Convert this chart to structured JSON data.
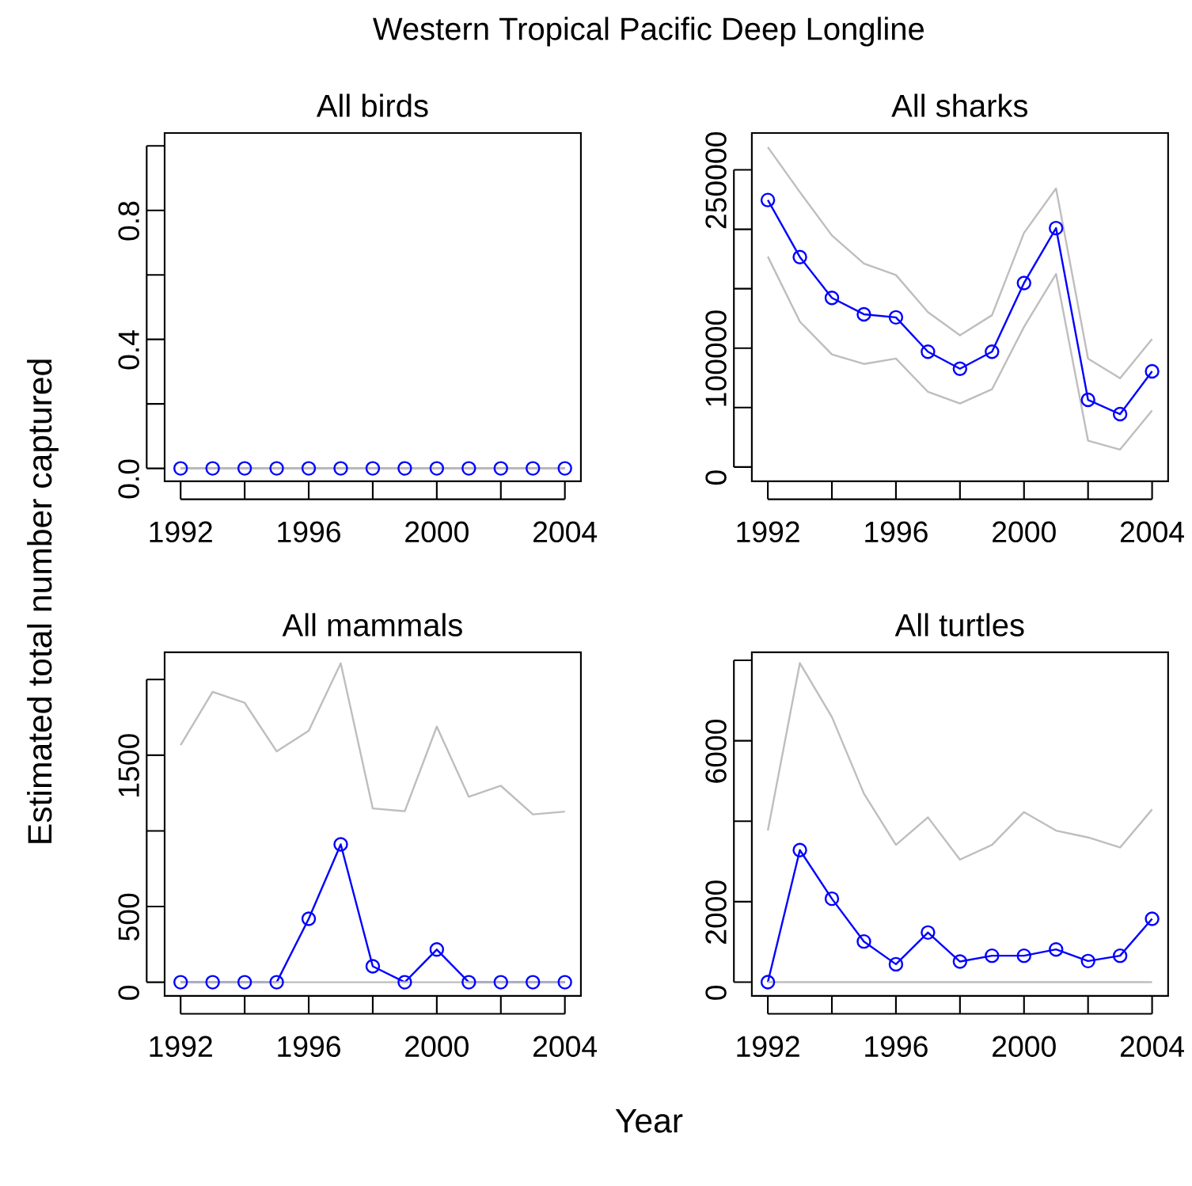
{
  "chart_data": [
    {
      "type": "other",
      "title": "Western Tropical Pacific Deep Longline",
      "xlabel": "Year",
      "ylabel": "Estimated total number captured"
    },
    {
      "type": "line",
      "title": "All birds",
      "x": [
        1992,
        1993,
        1994,
        1995,
        1996,
        1997,
        1998,
        1999,
        2000,
        2001,
        2002,
        2003,
        2004
      ],
      "xlim": [
        1991.5,
        2004.5
      ],
      "xticks": [
        1992,
        {
          "value": 1994,
          "label": null
        },
        1996,
        {
          "value": 1998,
          "label": null
        },
        2000,
        {
          "value": 2002,
          "label": null
        },
        2004
      ],
      "ylim": [
        -0.04,
        1.04
      ],
      "yticks": [
        {
          "value": 0,
          "label": "0.0"
        },
        {
          "value": 0.2,
          "label": null
        },
        {
          "value": 0.4,
          "label": "0.4"
        },
        {
          "value": 0.6,
          "label": null
        },
        {
          "value": 0.8,
          "label": "0.8"
        },
        {
          "value": 1.0,
          "label": null
        }
      ],
      "series": [
        {
          "color": "#0000ff",
          "marker": "circle",
          "values": [
            0,
            0,
            0,
            0,
            0,
            0,
            0,
            0,
            0,
            0,
            0,
            0,
            0
          ]
        },
        {
          "color": "#bebebe",
          "values": [
            0,
            0,
            0,
            0,
            0,
            0,
            0,
            0,
            0,
            0,
            0,
            0,
            0
          ]
        },
        {
          "color": "#bebebe",
          "values": [
            0,
            0,
            0,
            0,
            0,
            0,
            0,
            0,
            0,
            0,
            0,
            0,
            0
          ]
        }
      ]
    },
    {
      "type": "line",
      "title": "All sharks",
      "x": [
        1992,
        1993,
        1994,
        1995,
        1996,
        1997,
        1998,
        1999,
        2000,
        2001,
        2002,
        2003,
        2004
      ],
      "xlim": [
        1991.5,
        2004.5
      ],
      "xticks": [
        1992,
        {
          "value": 1994,
          "label": null
        },
        1996,
        {
          "value": 1998,
          "label": null
        },
        2000,
        {
          "value": 2002,
          "label": null
        },
        2004
      ],
      "ylim": [
        -12000,
        281000
      ],
      "yticks": [
        0,
        {
          "value": 50000,
          "label": null
        },
        100000,
        {
          "value": 150000,
          "label": null
        },
        {
          "value": 200000,
          "label": null
        },
        250000
      ],
      "series": [
        {
          "color": "#0000ff",
          "marker": "circle",
          "values": [
            224600,
            176600,
            142300,
            128500,
            125900,
            97000,
            82700,
            97000,
            154800,
            201000,
            56500,
            44500,
            80500
          ]
        },
        {
          "color": "#bebebe",
          "values": [
            177000,
            122300,
            94700,
            86700,
            91200,
            63200,
            53400,
            65400,
            117900,
            162400,
            22200,
            14700,
            47600
          ]
        },
        {
          "color": "#bebebe",
          "values": [
            269100,
            231300,
            194800,
            171200,
            161500,
            130300,
            110800,
            127700,
            197000,
            234400,
            91200,
            74700,
            107600
          ]
        }
      ]
    },
    {
      "type": "line",
      "title": "All mammals",
      "x": [
        1992,
        1993,
        1994,
        1995,
        1996,
        1997,
        1998,
        1999,
        2000,
        2001,
        2002,
        2003,
        2004
      ],
      "xlim": [
        1991.5,
        2004.5
      ],
      "xticks": [
        1992,
        {
          "value": 1994,
          "label": null
        },
        1996,
        {
          "value": 1998,
          "label": null
        },
        2000,
        {
          "value": 2002,
          "label": null
        },
        2004
      ],
      "ylim": [
        -90,
        2180
      ],
      "yticks": [
        0,
        500,
        {
          "value": 1000,
          "label": null
        },
        1500,
        {
          "value": 2000,
          "label": null
        }
      ],
      "series": [
        {
          "color": "#0000ff",
          "marker": "circle",
          "values": [
            0,
            0,
            0,
            0,
            419,
            911,
            105,
            0,
            216,
            0,
            0,
            0,
            0
          ]
        },
        {
          "color": "#bebebe",
          "values": [
            0,
            0,
            0,
            0,
            0,
            0,
            0,
            0,
            0,
            0,
            0,
            0,
            0
          ]
        },
        {
          "color": "#bebebe",
          "values": [
            1567,
            1919,
            1846,
            1525,
            1661,
            2107,
            1148,
            1130,
            1689,
            1225,
            1298,
            1109,
            1127
          ]
        }
      ]
    },
    {
      "type": "line",
      "title": "All turtles",
      "x": [
        1992,
        1993,
        1994,
        1995,
        1996,
        1997,
        1998,
        1999,
        2000,
        2001,
        2002,
        2003,
        2004
      ],
      "xlim": [
        1991.5,
        2004.5
      ],
      "xticks": [
        1992,
        {
          "value": 1994,
          "label": null
        },
        1996,
        {
          "value": 1998,
          "label": null
        },
        2000,
        {
          "value": 2002,
          "label": null
        },
        2004
      ],
      "ylim": [
        -340,
        8200
      ],
      "yticks": [
        0,
        2000,
        {
          "value": 4000,
          "label": null
        },
        6000,
        {
          "value": 8000,
          "label": null
        }
      ],
      "series": [
        {
          "color": "#0000ff",
          "marker": "circle",
          "values": [
            0,
            3283,
            2075,
            1011,
            446,
            1234,
            512,
            657,
            657,
            814,
            525,
            657,
            1576
          ]
        },
        {
          "color": "#bebebe",
          "values": [
            0,
            0,
            0,
            0,
            0,
            0,
            0,
            0,
            0,
            0,
            0,
            0,
            0
          ]
        },
        {
          "color": "#bebebe",
          "values": [
            3768,
            7931,
            6591,
            4687,
            3414,
            4097,
            3046,
            3414,
            4228,
            3768,
            3598,
            3348,
            4294
          ]
        }
      ]
    }
  ]
}
